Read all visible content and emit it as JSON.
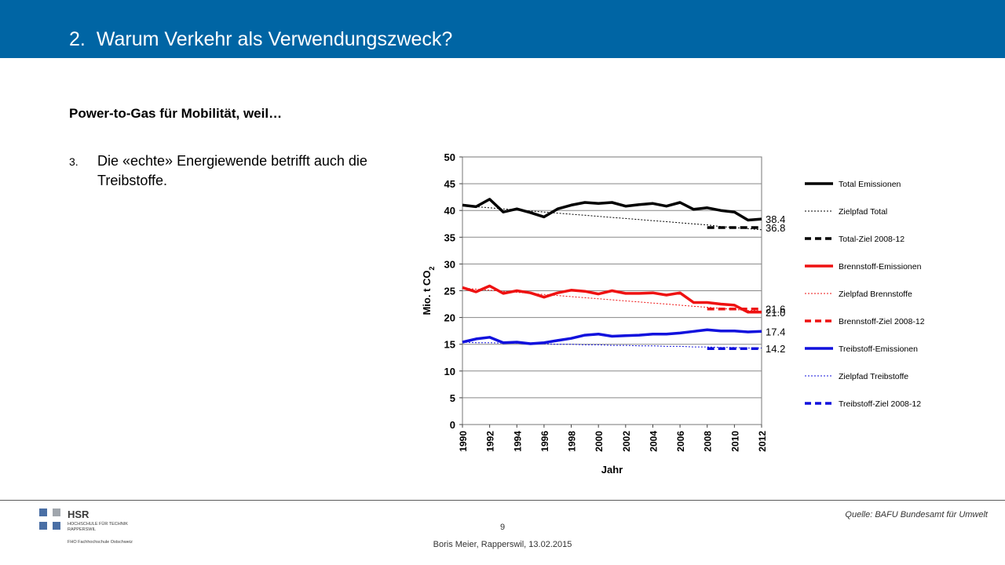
{
  "slide": {
    "number": "2.",
    "title": "Warum Verkehr als Verwendungszweck?",
    "subheading": "Power-to-Gas für Mobilität, weil…",
    "bullet_number": "3.",
    "bullet_text": "Die «echte» Energiewende betrifft auch die Treibstoffe."
  },
  "footer": {
    "page": "9",
    "author": "Boris Meier, Rapperswil, 13.02.2015",
    "source": "Quelle: BAFU Bundesamt für Umwelt",
    "logo_text": "HSR",
    "logo_line1": "HOCHSCHULE FÜR TECHNIK",
    "logo_line2": "RAPPERSWIL",
    "logo_line3": "FHO Fachhochschule Ostschweiz"
  },
  "chart_data": {
    "type": "line",
    "xlabel": "Jahr",
    "ylabel": "Mio. t CO",
    "ylabel_sub": "2",
    "xlim": [
      1990,
      2012
    ],
    "ylim": [
      0,
      50
    ],
    "yticks": [
      0,
      5,
      10,
      15,
      20,
      25,
      30,
      35,
      40,
      45,
      50
    ],
    "xticks": [
      "1990",
      "1992",
      "1994",
      "1996",
      "1998",
      "2000",
      "2002",
      "2004",
      "2006",
      "2008",
      "2010",
      "2012"
    ],
    "x": [
      1990,
      1991,
      1992,
      1993,
      1994,
      1995,
      1996,
      1997,
      1998,
      1999,
      2000,
      2001,
      2002,
      2003,
      2004,
      2005,
      2006,
      2007,
      2008,
      2009,
      2010,
      2011,
      2012
    ],
    "grid": true,
    "legend_position": "right",
    "series": [
      {
        "name": "Total Emissionen",
        "style": "solid",
        "color": "#000000",
        "values": [
          41.0,
          40.7,
          42.1,
          39.7,
          40.3,
          39.6,
          38.8,
          40.3,
          41.0,
          41.5,
          41.3,
          41.5,
          40.8,
          41.1,
          41.3,
          40.8,
          41.5,
          40.2,
          40.5,
          40.0,
          39.7,
          38.2,
          38.4
        ]
      },
      {
        "name": "Zielpfad Total",
        "style": "dotted",
        "color": "#000000",
        "values": [
          40.9,
          40.7,
          40.5,
          40.3,
          40.1,
          39.9,
          39.7,
          39.5,
          39.3,
          39.1,
          38.9,
          38.7,
          38.5,
          38.3,
          38.1,
          37.9,
          37.7,
          37.5,
          37.3,
          37.0,
          36.8,
          36.6,
          36.4
        ]
      },
      {
        "name": "Total-Ziel 2008-12",
        "style": "dashed",
        "color": "#000000",
        "x": [
          2008,
          2012
        ],
        "values": [
          36.8,
          36.8
        ]
      },
      {
        "name": "Brennstoff-Emissionen",
        "style": "solid",
        "color": "#ee1111",
        "values": [
          25.6,
          24.8,
          25.9,
          24.5,
          25.0,
          24.6,
          23.8,
          24.6,
          25.1,
          24.9,
          24.4,
          25.0,
          24.5,
          24.5,
          24.6,
          24.2,
          24.6,
          22.8,
          22.8,
          22.5,
          22.3,
          21.0,
          21.0
        ]
      },
      {
        "name": "Zielpfad Brennstoffe",
        "style": "dotted",
        "color": "#ee1111",
        "values": [
          25.5,
          25.3,
          25.1,
          24.9,
          24.7,
          24.5,
          24.3,
          24.1,
          23.9,
          23.7,
          23.5,
          23.3,
          23.1,
          22.9,
          22.7,
          22.5,
          22.3,
          22.1,
          21.9,
          21.7,
          21.5,
          21.3,
          21.2
        ]
      },
      {
        "name": "Brennstoff-Ziel 2008-12",
        "style": "dashed",
        "color": "#ee1111",
        "x": [
          2008,
          2012
        ],
        "values": [
          21.6,
          21.6
        ]
      },
      {
        "name": "Treibstoff-Emissionen",
        "style": "solid",
        "color": "#1111dd",
        "values": [
          15.4,
          16.0,
          16.3,
          15.3,
          15.4,
          15.1,
          15.3,
          15.7,
          16.1,
          16.7,
          16.9,
          16.5,
          16.6,
          16.7,
          16.9,
          16.9,
          17.1,
          17.4,
          17.7,
          17.5,
          17.5,
          17.3,
          17.4
        ]
      },
      {
        "name": "Zielpfad Treibstoffe",
        "style": "dotted",
        "color": "#1111dd",
        "values": [
          15.4,
          15.3,
          15.3,
          15.2,
          15.2,
          15.1,
          15.1,
          15.0,
          15.0,
          14.9,
          14.9,
          14.8,
          14.8,
          14.7,
          14.7,
          14.6,
          14.6,
          14.5,
          14.5,
          14.4,
          14.4,
          14.3,
          14.3
        ]
      },
      {
        "name": "Treibstoff-Ziel 2008-12",
        "style": "dashed",
        "color": "#1111dd",
        "x": [
          2008,
          2012
        ],
        "values": [
          14.2,
          14.2
        ]
      }
    ],
    "end_labels": [
      {
        "value": 38.4,
        "text": "38.4"
      },
      {
        "value": 36.8,
        "text": "36.8"
      },
      {
        "value": 21.6,
        "text": "21.6"
      },
      {
        "value": 21.0,
        "text": "21.0"
      },
      {
        "value": 17.4,
        "text": "17.4"
      },
      {
        "value": 14.2,
        "text": "14.2"
      }
    ]
  }
}
